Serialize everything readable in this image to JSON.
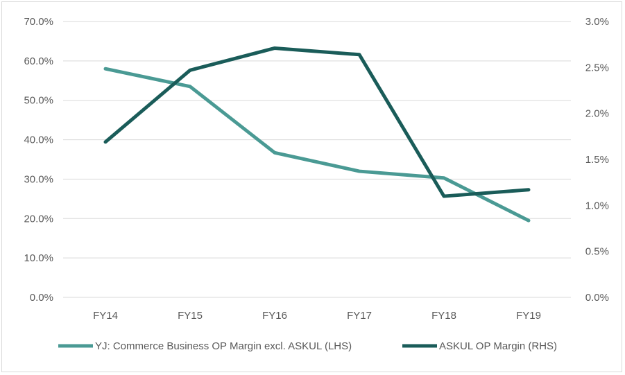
{
  "chart_data": {
    "type": "line",
    "title": "",
    "categories": [
      "FY14",
      "FY15",
      "FY16",
      "FY17",
      "FY18",
      "FY19"
    ],
    "y_left": {
      "min": 0,
      "max": 70,
      "step": 10,
      "tick_labels": [
        "0.0%",
        "10.0%",
        "20.0%",
        "30.0%",
        "40.0%",
        "50.0%",
        "60.0%",
        "70.0%"
      ]
    },
    "y_right": {
      "min": 0,
      "max": 3,
      "step": 0.5,
      "tick_labels": [
        "0.0%",
        "0.5%",
        "1.0%",
        "1.5%",
        "2.0%",
        "2.5%",
        "3.0%"
      ]
    },
    "grid": true,
    "legend_position": "bottom",
    "series": [
      {
        "name": "YJ: Commerce Business OP Margin excl. ASKUL (LHS)",
        "axis": "left",
        "color": "#4a9a94",
        "values": [
          58.0,
          53.5,
          36.7,
          32.0,
          30.3,
          19.5
        ]
      },
      {
        "name": "ASKUL OP Margin (RHS)",
        "axis": "right",
        "color": "#1a5c59",
        "values": [
          1.69,
          2.47,
          2.71,
          2.64,
          1.1,
          1.17
        ]
      }
    ]
  }
}
